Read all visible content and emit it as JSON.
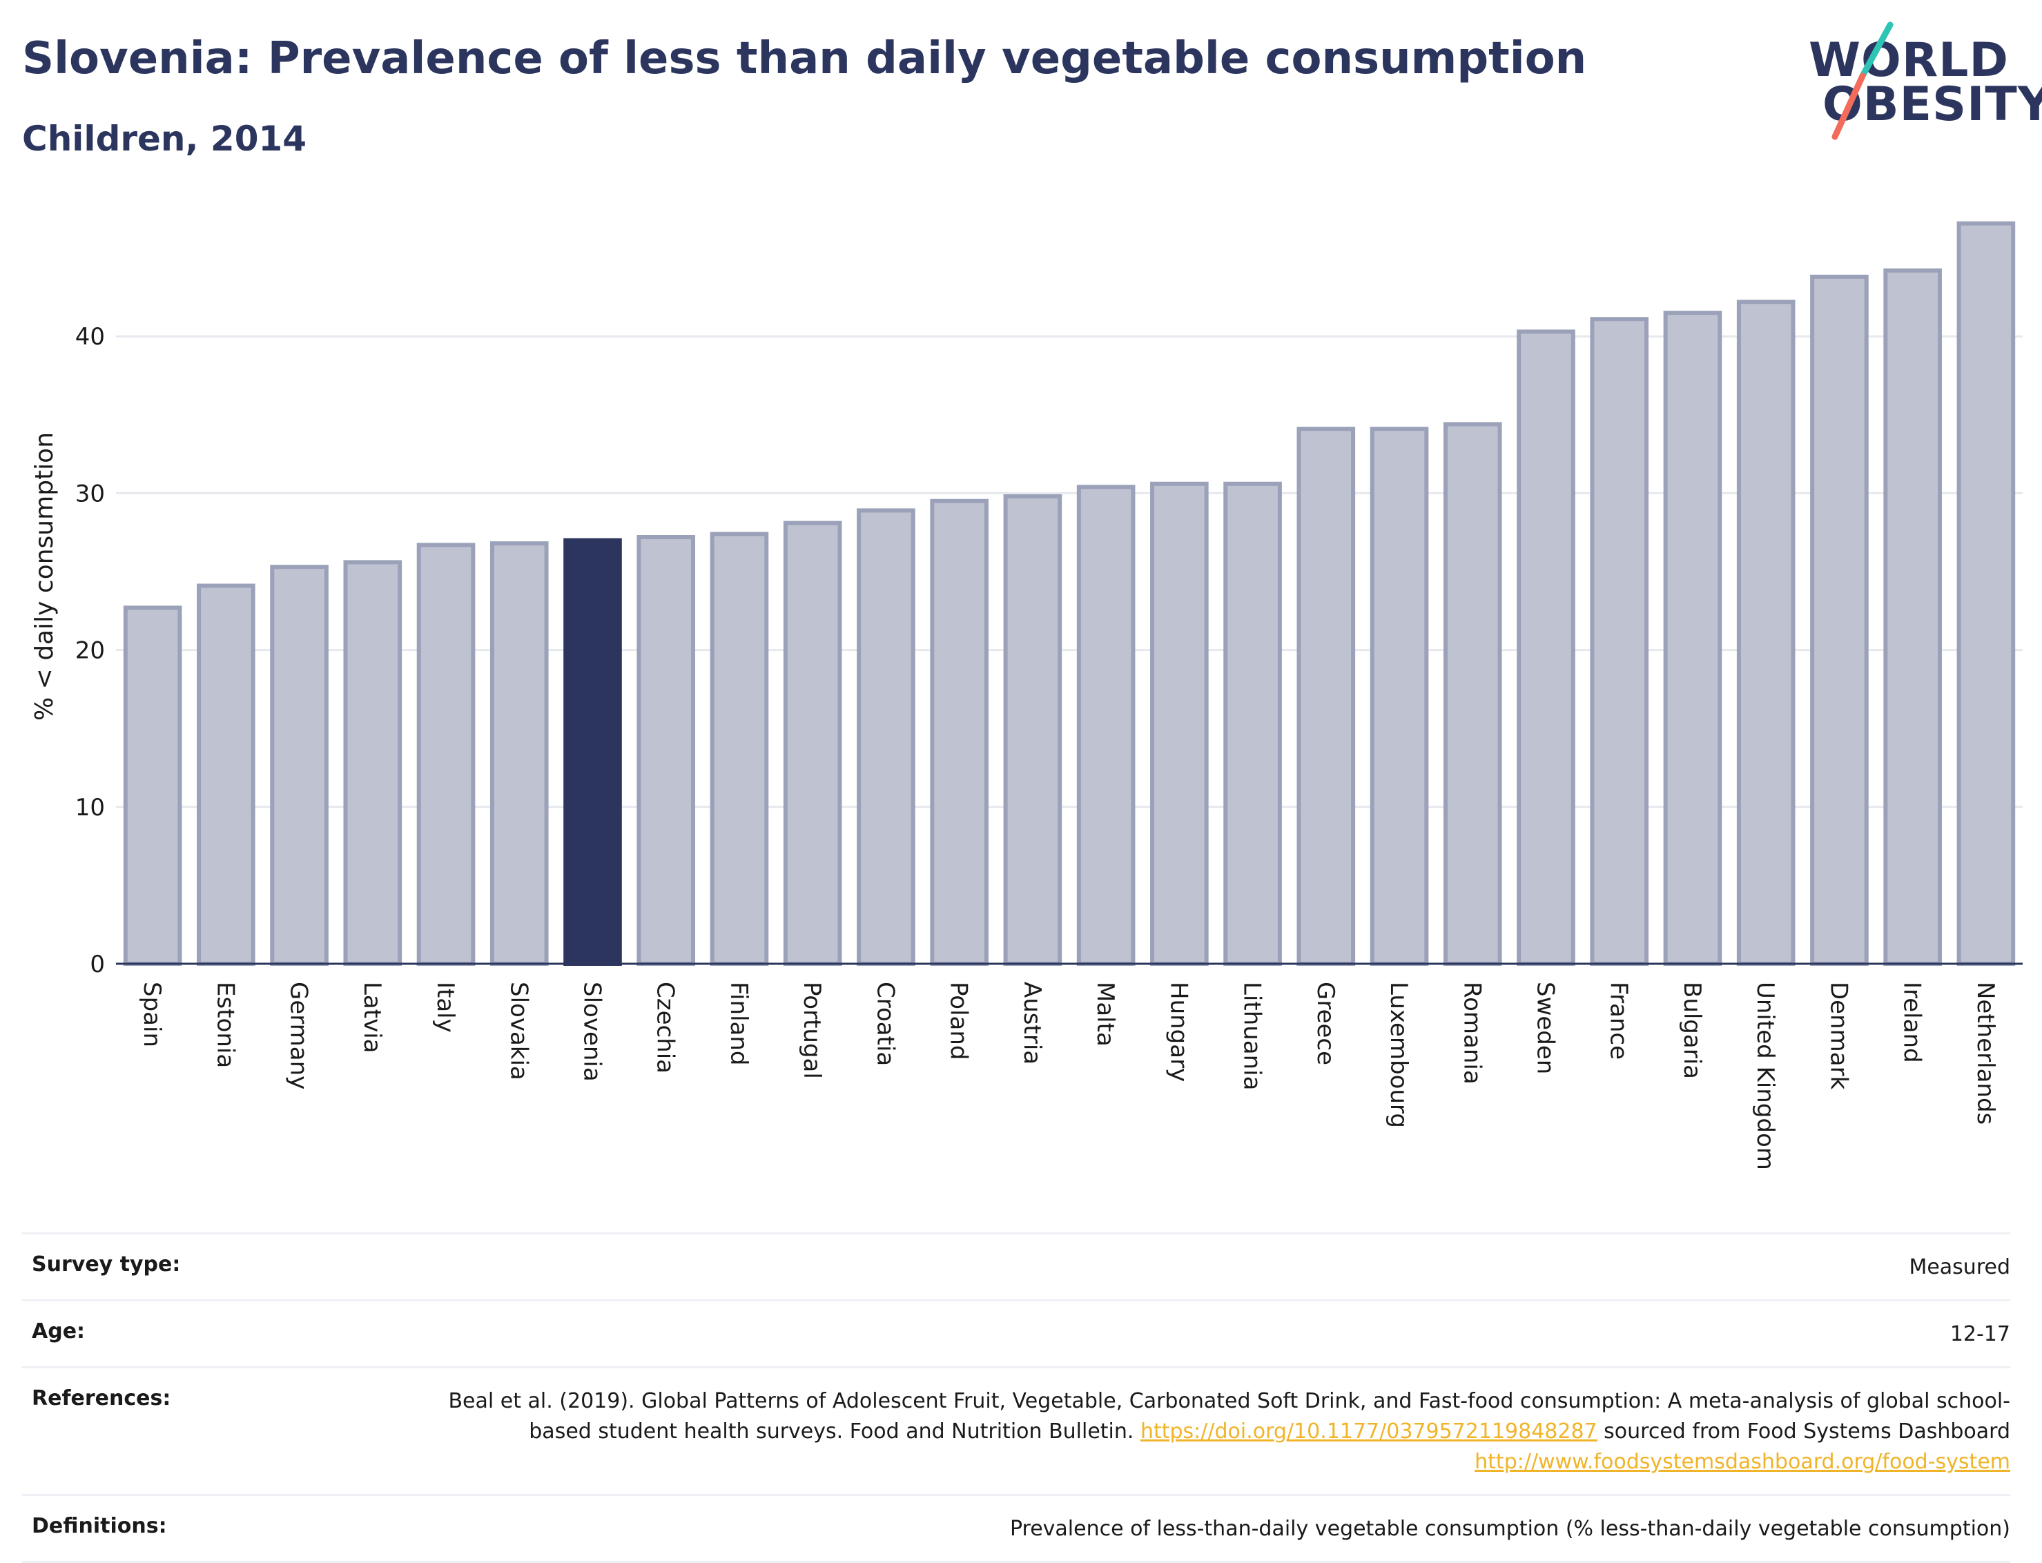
{
  "header": {
    "title": "Slovenia: Prevalence of less than daily vegetable consumption",
    "subtitle": "Children, 2014",
    "logo_line1": "WORLD",
    "logo_line2": "OBESITY"
  },
  "colors": {
    "bar": "#bfc3d1",
    "bar_border": "#9aa1b8",
    "highlight": "#2b355e",
    "text": "#2b355e",
    "link": "#f0b429",
    "logo_slash_top": "#2ec4b6",
    "logo_slash_bottom": "#f26b5b"
  },
  "chart_data": {
    "type": "bar",
    "title": "Slovenia: Prevalence of less than daily vegetable consumption",
    "subtitle": "Children, 2014",
    "xlabel": "",
    "ylabel": "% < daily consumption",
    "ylim": [
      0,
      50
    ],
    "yticks": [
      0,
      10,
      20,
      30,
      40
    ],
    "grid": true,
    "highlight": "Slovenia",
    "categories": [
      "Spain",
      "Estonia",
      "Germany",
      "Latvia",
      "Italy",
      "Slovakia",
      "Slovenia",
      "Czechia",
      "Finland",
      "Portugal",
      "Croatia",
      "Poland",
      "Austria",
      "Malta",
      "Hungary",
      "Lithuania",
      "Greece",
      "Luxembourg",
      "Romania",
      "Sweden",
      "France",
      "Bulgaria",
      "United Kingdom",
      "Denmark",
      "Ireland",
      "Netherlands"
    ],
    "values": [
      22.7,
      24.1,
      25.3,
      25.6,
      26.7,
      26.8,
      27.0,
      27.2,
      27.4,
      28.1,
      28.9,
      29.5,
      29.8,
      30.4,
      30.6,
      30.6,
      34.1,
      34.1,
      34.4,
      40.3,
      41.1,
      41.5,
      42.2,
      43.8,
      44.2,
      47.2
    ]
  },
  "meta": {
    "survey_type_label": "Survey type:",
    "survey_type_value": "Measured",
    "age_label": "Age:",
    "age_value": "12-17",
    "references_label": "References:",
    "references_text_1": "Beal et al. (2019). Global Patterns of Adolescent Fruit, Vegetable, Carbonated Soft Drink, and Fast-food consumption: A meta-analysis of global school-based student health surveys. Food and Nutrition Bulletin. ",
    "references_link_1": "https://doi.org/10.1177/0379572119848287",
    "references_text_2": " sourced from Food Systems Dashboard ",
    "references_link_2": "http://www.foodsystemsdashboard.org/food-system",
    "definitions_label": "Definitions:",
    "definitions_value": "Prevalence of less-than-daily vegetable consumption (% less-than-daily vegetable consumption)"
  }
}
